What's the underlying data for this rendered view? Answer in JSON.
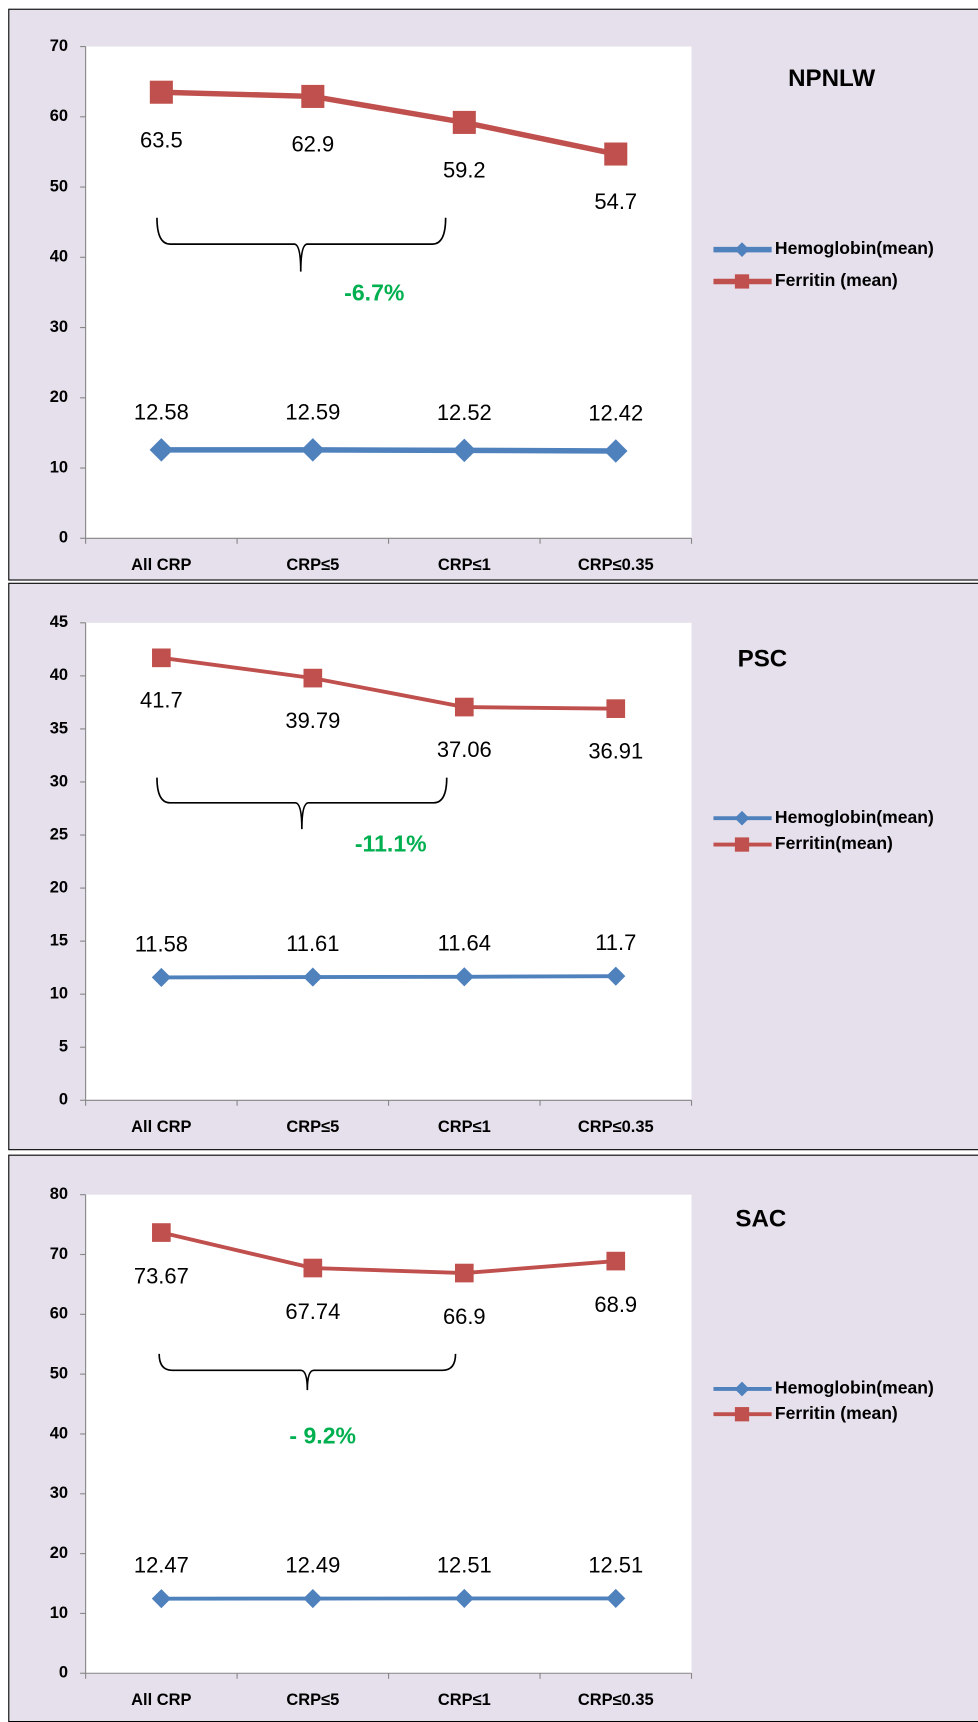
{
  "chart_data": [
    {
      "type": "line",
      "title": "NPNLW",
      "categories": [
        "All CRP",
        "CRP≤5",
        "CRP≤1",
        "CRP≤0.35"
      ],
      "series": [
        {
          "name": "Hemoglobin(mean)",
          "color": "#4f81bd",
          "values": [
            12.58,
            12.59,
            12.52,
            12.42
          ]
        },
        {
          "name": "Ferritin (mean)",
          "color": "#c0504d",
          "values": [
            63.5,
            62.9,
            59.2,
            54.7
          ]
        }
      ],
      "ylim": [
        0,
        70
      ],
      "yticks": [
        0,
        10,
        20,
        30,
        40,
        50,
        60,
        70
      ],
      "annotation": "-6.7%"
    },
    {
      "type": "line",
      "title": "PSC",
      "categories": [
        "All CRP",
        "CRP≤5",
        "CRP≤1",
        "CRP≤0.35"
      ],
      "series": [
        {
          "name": "Hemoglobin(mean)",
          "color": "#4f81bd",
          "values": [
            11.58,
            11.61,
            11.64,
            11.7
          ]
        },
        {
          "name": "Ferritin(mean)",
          "color": "#c0504d",
          "values": [
            41.7,
            39.79,
            37.06,
            36.91
          ]
        }
      ],
      "ylim": [
        0,
        45
      ],
      "yticks": [
        0,
        5,
        10,
        15,
        20,
        25,
        30,
        35,
        40,
        45
      ],
      "annotation": "-11.1%"
    },
    {
      "type": "line",
      "title": "SAC",
      "categories": [
        "All CRP",
        "CRP≤5",
        "CRP≤1",
        "CRP≤0.35"
      ],
      "series": [
        {
          "name": "Hemoglobin(mean)",
          "color": "#4f81bd",
          "values": [
            12.47,
            12.49,
            12.51,
            12.51
          ]
        },
        {
          "name": "Ferritin (mean)",
          "color": "#c0504d",
          "values": [
            73.67,
            67.74,
            66.9,
            68.9
          ]
        }
      ],
      "ylim": [
        0,
        80
      ],
      "yticks": [
        0,
        10,
        20,
        30,
        40,
        50,
        60,
        70,
        80
      ],
      "annotation": "- 9.2%"
    }
  ]
}
